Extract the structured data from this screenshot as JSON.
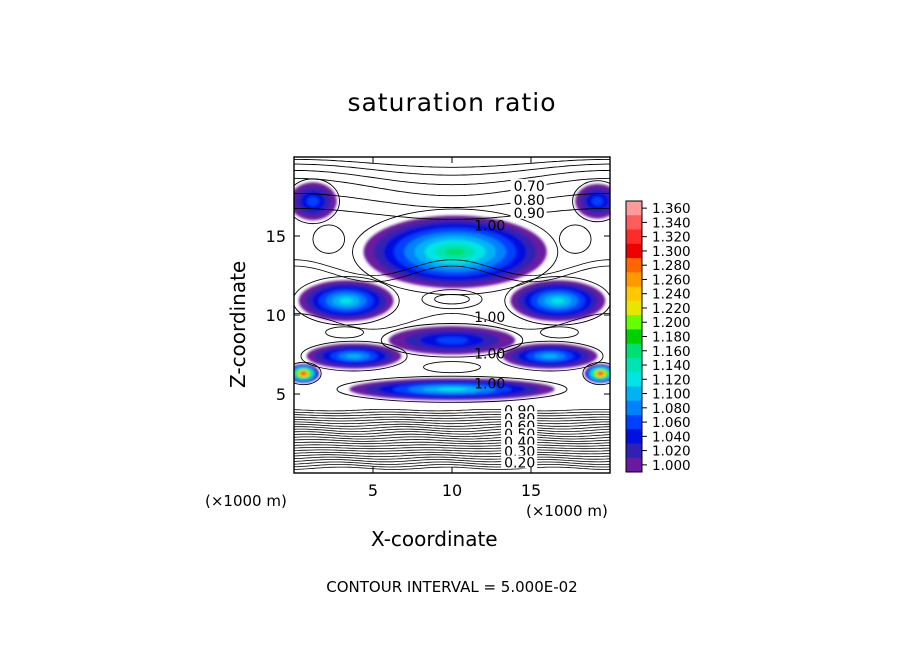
{
  "chart_data": {
    "type": "contour",
    "title": "saturation ratio",
    "xlabel": "X-coordinate",
    "ylabel": "Z-coordinate",
    "x_unit_label": "(×1000 m)",
    "z_unit_label": "(×1000 m)",
    "x_ticks": [
      "5",
      "10",
      "15"
    ],
    "y_ticks": [
      "5",
      "10",
      "15"
    ],
    "xlim": [
      0,
      20
    ],
    "ylim": [
      0,
      20
    ],
    "footer": "CONTOUR INTERVAL = 5.000E-02",
    "colorbar": {
      "labels": [
        "1.360",
        "1.340",
        "1.320",
        "1.300",
        "1.280",
        "1.260",
        "1.240",
        "1.220",
        "1.200",
        "1.180",
        "1.160",
        "1.140",
        "1.120",
        "1.100",
        "1.080",
        "1.060",
        "1.040",
        "1.020",
        "1.000"
      ],
      "colors": [
        "#ff9a9a",
        "#ff5c5c",
        "#ff2a2a",
        "#ee0000",
        "#ff6600",
        "#ff9900",
        "#ffc800",
        "#e6e600",
        "#66ff00",
        "#00d000",
        "#00e070",
        "#00e4b4",
        "#00e4e4",
        "#00b4f4",
        "#0082ff",
        "#0040ff",
        "#0010e0",
        "#3020b4",
        "#6a1aa0"
      ]
    },
    "contour_labels": [
      {
        "text": "0.70",
        "x": 13.9,
        "z": 18.1
      },
      {
        "text": "0.80",
        "x": 13.9,
        "z": 17.2
      },
      {
        "text": "0.90",
        "x": 13.9,
        "z": 16.4
      },
      {
        "text": "1.00",
        "x": 11.4,
        "z": 15.6
      },
      {
        "text": "1.00",
        "x": 11.4,
        "z": 9.8
      },
      {
        "text": "1.00",
        "x": 11.4,
        "z": 7.5
      },
      {
        "text": "1.00",
        "x": 11.4,
        "z": 5.6
      },
      {
        "text": "0.90",
        "x": 13.3,
        "z": 3.9
      },
      {
        "text": "0.80",
        "x": 13.3,
        "z": 3.4
      },
      {
        "text": "0.60",
        "x": 13.3,
        "z": 2.9
      },
      {
        "text": "0.50",
        "x": 13.3,
        "z": 2.4
      },
      {
        "text": "0.40",
        "x": 13.3,
        "z": 1.9
      },
      {
        "text": "0.30",
        "x": 13.3,
        "z": 1.3
      },
      {
        "text": "0.20",
        "x": 13.3,
        "z": 0.6
      }
    ],
    "moist_regions": [
      {
        "x": 10.2,
        "z": 14.0,
        "rx": 5.8,
        "rz": 2.3,
        "peak": 1.16
      },
      {
        "x": 1.2,
        "z": 17.2,
        "rx": 1.5,
        "rz": 1.2,
        "peak": 1.06
      },
      {
        "x": 19.2,
        "z": 17.2,
        "rx": 1.4,
        "rz": 1.1,
        "peak": 1.06
      },
      {
        "x": 3.3,
        "z": 10.9,
        "rx": 3.0,
        "rz": 1.3,
        "peak": 1.13
      },
      {
        "x": 16.7,
        "z": 10.9,
        "rx": 3.0,
        "rz": 1.3,
        "peak": 1.13
      },
      {
        "x": 10.0,
        "z": 8.4,
        "rx": 4.0,
        "rz": 0.9,
        "peak": 1.06
      },
      {
        "x": 10.0,
        "z": 5.3,
        "rx": 6.5,
        "rz": 0.7,
        "peak": 1.12
      },
      {
        "x": 3.8,
        "z": 7.4,
        "rx": 3.0,
        "rz": 0.8,
        "peak": 1.1
      },
      {
        "x": 16.2,
        "z": 7.4,
        "rx": 3.0,
        "rz": 0.8,
        "peak": 1.1
      },
      {
        "x": 0.6,
        "z": 6.3,
        "rx": 1.0,
        "rz": 0.6,
        "peak": 1.32
      },
      {
        "x": 19.4,
        "z": 6.3,
        "rx": 1.0,
        "rz": 0.6,
        "peak": 1.32
      }
    ]
  }
}
